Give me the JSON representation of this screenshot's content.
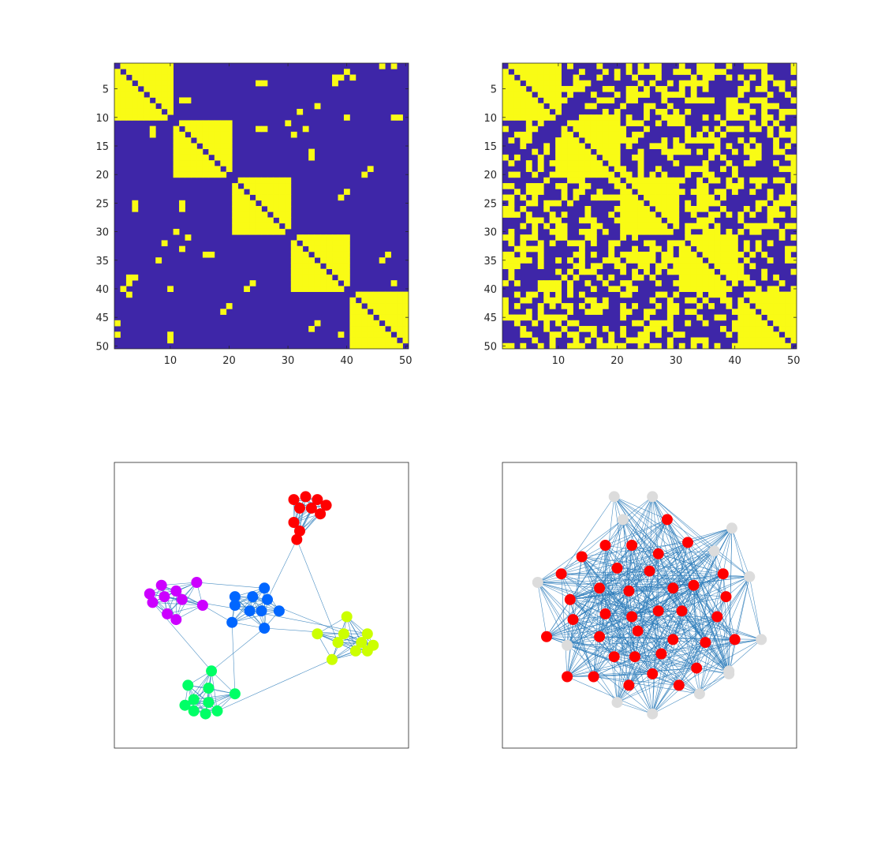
{
  "colors": {
    "off": "#3e26a8",
    "on": "#f9fb15",
    "edge": "#2b7bba",
    "frame": "#262626",
    "inactive_node": "#dcdcdc"
  },
  "chart_data": [
    {
      "type": "heatmap",
      "name": "adjacency-left",
      "rows": 50,
      "cols": 50,
      "xlim": [
        0.5,
        50.5
      ],
      "ylim": [
        0.5,
        50.5
      ],
      "xticks": [
        10,
        20,
        30,
        40,
        50
      ],
      "yticks": [
        5,
        10,
        15,
        20,
        25,
        30,
        35,
        40,
        45,
        50
      ],
      "xtick_labels": [
        "10",
        "20",
        "30",
        "40",
        "50"
      ],
      "ytick_labels": [
        "5",
        "10",
        "15",
        "20",
        "25",
        "30",
        "35",
        "40",
        "45",
        "50"
      ],
      "blocks": [
        [
          1,
          10
        ],
        [
          11,
          20
        ],
        [
          21,
          30
        ],
        [
          31,
          40
        ],
        [
          41,
          50
        ]
      ],
      "diagonal": 0,
      "extra_on_pairs": [
        [
          1,
          48
        ],
        [
          3,
          39
        ],
        [
          3,
          41
        ],
        [
          4,
          26
        ],
        [
          7,
          13
        ],
        [
          8,
          35
        ],
        [
          10,
          48
        ],
        [
          12,
          7
        ],
        [
          12,
          33
        ],
        [
          12,
          26
        ],
        [
          13,
          31
        ],
        [
          17,
          34
        ],
        [
          19,
          44
        ],
        [
          23,
          40
        ],
        [
          25,
          4
        ],
        [
          25,
          12
        ],
        [
          30,
          11
        ],
        [
          32,
          9
        ],
        [
          34,
          16
        ],
        [
          34,
          47
        ],
        [
          38,
          3
        ],
        [
          38,
          4
        ],
        [
          39,
          24
        ],
        [
          39,
          48
        ],
        [
          40,
          2
        ],
        [
          40,
          10
        ],
        [
          43,
          20
        ],
        [
          46,
          1
        ],
        [
          46,
          35
        ],
        [
          49,
          10
        ]
      ],
      "note_symmetric": true
    },
    {
      "type": "heatmap",
      "name": "adjacency-right",
      "rows": 50,
      "cols": 50,
      "xlim": [
        0.5,
        50.5
      ],
      "ylim": [
        0.5,
        50.5
      ],
      "xticks": [
        10,
        20,
        30,
        40,
        50
      ],
      "yticks": [
        5,
        10,
        15,
        20,
        25,
        30,
        35,
        40,
        45,
        50
      ],
      "xtick_labels": [
        "10",
        "20",
        "30",
        "40",
        "50"
      ],
      "ytick_labels": [
        "5",
        "10",
        "15",
        "20",
        "25",
        "30",
        "35",
        "40",
        "45",
        "50"
      ],
      "blocks": [
        [
          1,
          10
        ],
        [
          11,
          20
        ],
        [
          21,
          30
        ],
        [
          31,
          40
        ],
        [
          41,
          50
        ]
      ],
      "diagonal": 0,
      "off_block_density": 0.42
    },
    {
      "type": "scatter",
      "name": "graph-left",
      "xlim": [
        0,
        1
      ],
      "ylim": [
        0,
        1
      ],
      "nodes": [
        {
          "x": 0.61,
          "y": 0.87,
          "c": "#ff0000"
        },
        {
          "x": 0.65,
          "y": 0.88,
          "c": "#ff0000"
        },
        {
          "x": 0.69,
          "y": 0.87,
          "c": "#ff0000"
        },
        {
          "x": 0.72,
          "y": 0.85,
          "c": "#ff0000"
        },
        {
          "x": 0.63,
          "y": 0.84,
          "c": "#ff0000"
        },
        {
          "x": 0.67,
          "y": 0.84,
          "c": "#ff0000"
        },
        {
          "x": 0.7,
          "y": 0.82,
          "c": "#ff0000"
        },
        {
          "x": 0.61,
          "y": 0.79,
          "c": "#ff0000"
        },
        {
          "x": 0.63,
          "y": 0.76,
          "c": "#ff0000"
        },
        {
          "x": 0.62,
          "y": 0.73,
          "c": "#ff0000"
        },
        {
          "x": 0.28,
          "y": 0.58,
          "c": "#cc00ff"
        },
        {
          "x": 0.16,
          "y": 0.57,
          "c": "#cc00ff"
        },
        {
          "x": 0.21,
          "y": 0.55,
          "c": "#cc00ff"
        },
        {
          "x": 0.12,
          "y": 0.54,
          "c": "#cc00ff"
        },
        {
          "x": 0.17,
          "y": 0.53,
          "c": "#cc00ff"
        },
        {
          "x": 0.23,
          "y": 0.52,
          "c": "#cc00ff"
        },
        {
          "x": 0.13,
          "y": 0.51,
          "c": "#cc00ff"
        },
        {
          "x": 0.3,
          "y": 0.5,
          "c": "#cc00ff"
        },
        {
          "x": 0.18,
          "y": 0.47,
          "c": "#cc00ff"
        },
        {
          "x": 0.21,
          "y": 0.45,
          "c": "#cc00ff"
        },
        {
          "x": 0.51,
          "y": 0.56,
          "c": "#0066ff"
        },
        {
          "x": 0.41,
          "y": 0.53,
          "c": "#0066ff"
        },
        {
          "x": 0.47,
          "y": 0.53,
          "c": "#0066ff"
        },
        {
          "x": 0.41,
          "y": 0.5,
          "c": "#0066ff"
        },
        {
          "x": 0.52,
          "y": 0.52,
          "c": "#0066ff"
        },
        {
          "x": 0.46,
          "y": 0.48,
          "c": "#0066ff"
        },
        {
          "x": 0.5,
          "y": 0.48,
          "c": "#0066ff"
        },
        {
          "x": 0.56,
          "y": 0.48,
          "c": "#0066ff"
        },
        {
          "x": 0.4,
          "y": 0.44,
          "c": "#0066ff"
        },
        {
          "x": 0.51,
          "y": 0.42,
          "c": "#0066ff"
        },
        {
          "x": 0.79,
          "y": 0.46,
          "c": "#ccff00"
        },
        {
          "x": 0.78,
          "y": 0.4,
          "c": "#ccff00"
        },
        {
          "x": 0.69,
          "y": 0.4,
          "c": "#ccff00"
        },
        {
          "x": 0.86,
          "y": 0.4,
          "c": "#ccff00"
        },
        {
          "x": 0.76,
          "y": 0.37,
          "c": "#ccff00"
        },
        {
          "x": 0.84,
          "y": 0.37,
          "c": "#ccff00"
        },
        {
          "x": 0.88,
          "y": 0.36,
          "c": "#ccff00"
        },
        {
          "x": 0.82,
          "y": 0.34,
          "c": "#ccff00"
        },
        {
          "x": 0.86,
          "y": 0.34,
          "c": "#ccff00"
        },
        {
          "x": 0.74,
          "y": 0.31,
          "c": "#ccff00"
        },
        {
          "x": 0.33,
          "y": 0.27,
          "c": "#00ff66"
        },
        {
          "x": 0.25,
          "y": 0.22,
          "c": "#00ff66"
        },
        {
          "x": 0.32,
          "y": 0.21,
          "c": "#00ff66"
        },
        {
          "x": 0.41,
          "y": 0.19,
          "c": "#00ff66"
        },
        {
          "x": 0.27,
          "y": 0.17,
          "c": "#00ff66"
        },
        {
          "x": 0.32,
          "y": 0.16,
          "c": "#00ff66"
        },
        {
          "x": 0.24,
          "y": 0.15,
          "c": "#00ff66"
        },
        {
          "x": 0.27,
          "y": 0.13,
          "c": "#00ff66"
        },
        {
          "x": 0.31,
          "y": 0.12,
          "c": "#00ff66"
        },
        {
          "x": 0.35,
          "y": 0.13,
          "c": "#00ff66"
        }
      ],
      "groups": [
        [
          0,
          10
        ],
        [
          10,
          20
        ],
        [
          20,
          30
        ],
        [
          30,
          40
        ],
        [
          40,
          50
        ]
      ],
      "inter_edges": [
        [
          9,
          24
        ],
        [
          9,
          34
        ],
        [
          10,
          20
        ],
        [
          17,
          28
        ],
        [
          16,
          40
        ],
        [
          28,
          43
        ],
        [
          29,
          31
        ],
        [
          29,
          40
        ],
        [
          25,
          33
        ],
        [
          49,
          39
        ],
        [
          22,
          36
        ],
        [
          14,
          25
        ]
      ]
    },
    {
      "type": "scatter",
      "name": "graph-right",
      "xlim": [
        0,
        1
      ],
      "ylim": [
        0,
        1
      ],
      "nodes": [
        {
          "x": 0.38,
          "y": 0.88,
          "c": "#dcdcdc"
        },
        {
          "x": 0.51,
          "y": 0.88,
          "c": "#dcdcdc"
        },
        {
          "x": 0.41,
          "y": 0.8,
          "c": "#dcdcdc"
        },
        {
          "x": 0.78,
          "y": 0.77,
          "c": "#dcdcdc"
        },
        {
          "x": 0.72,
          "y": 0.69,
          "c": "#dcdcdc"
        },
        {
          "x": 0.12,
          "y": 0.58,
          "c": "#dcdcdc"
        },
        {
          "x": 0.84,
          "y": 0.6,
          "c": "#dcdcdc"
        },
        {
          "x": 0.22,
          "y": 0.36,
          "c": "#dcdcdc"
        },
        {
          "x": 0.88,
          "y": 0.38,
          "c": "#dcdcdc"
        },
        {
          "x": 0.77,
          "y": 0.27,
          "c": "#dcdcdc"
        },
        {
          "x": 0.67,
          "y": 0.19,
          "c": "#dcdcdc"
        },
        {
          "x": 0.39,
          "y": 0.16,
          "c": "#dcdcdc"
        },
        {
          "x": 0.51,
          "y": 0.12,
          "c": "#dcdcdc"
        },
        {
          "x": 0.77,
          "y": 0.26,
          "c": "#dcdcdc"
        },
        {
          "x": 0.56,
          "y": 0.8,
          "c": "#ff0000"
        },
        {
          "x": 0.63,
          "y": 0.72,
          "c": "#ff0000"
        },
        {
          "x": 0.35,
          "y": 0.71,
          "c": "#ff0000"
        },
        {
          "x": 0.44,
          "y": 0.71,
          "c": "#ff0000"
        },
        {
          "x": 0.27,
          "y": 0.67,
          "c": "#ff0000"
        },
        {
          "x": 0.53,
          "y": 0.68,
          "c": "#ff0000"
        },
        {
          "x": 0.2,
          "y": 0.61,
          "c": "#ff0000"
        },
        {
          "x": 0.39,
          "y": 0.63,
          "c": "#ff0000"
        },
        {
          "x": 0.5,
          "y": 0.62,
          "c": "#ff0000"
        },
        {
          "x": 0.75,
          "y": 0.61,
          "c": "#ff0000"
        },
        {
          "x": 0.33,
          "y": 0.56,
          "c": "#ff0000"
        },
        {
          "x": 0.43,
          "y": 0.55,
          "c": "#ff0000"
        },
        {
          "x": 0.58,
          "y": 0.56,
          "c": "#ff0000"
        },
        {
          "x": 0.65,
          "y": 0.57,
          "c": "#ff0000"
        },
        {
          "x": 0.23,
          "y": 0.52,
          "c": "#ff0000"
        },
        {
          "x": 0.76,
          "y": 0.53,
          "c": "#ff0000"
        },
        {
          "x": 0.35,
          "y": 0.47,
          "c": "#ff0000"
        },
        {
          "x": 0.53,
          "y": 0.48,
          "c": "#ff0000"
        },
        {
          "x": 0.61,
          "y": 0.48,
          "c": "#ff0000"
        },
        {
          "x": 0.24,
          "y": 0.45,
          "c": "#ff0000"
        },
        {
          "x": 0.44,
          "y": 0.46,
          "c": "#ff0000"
        },
        {
          "x": 0.73,
          "y": 0.46,
          "c": "#ff0000"
        },
        {
          "x": 0.46,
          "y": 0.41,
          "c": "#ff0000"
        },
        {
          "x": 0.15,
          "y": 0.39,
          "c": "#ff0000"
        },
        {
          "x": 0.33,
          "y": 0.39,
          "c": "#ff0000"
        },
        {
          "x": 0.58,
          "y": 0.38,
          "c": "#ff0000"
        },
        {
          "x": 0.79,
          "y": 0.38,
          "c": "#ff0000"
        },
        {
          "x": 0.69,
          "y": 0.37,
          "c": "#ff0000"
        },
        {
          "x": 0.45,
          "y": 0.32,
          "c": "#ff0000"
        },
        {
          "x": 0.54,
          "y": 0.33,
          "c": "#ff0000"
        },
        {
          "x": 0.38,
          "y": 0.32,
          "c": "#ff0000"
        },
        {
          "x": 0.66,
          "y": 0.28,
          "c": "#ff0000"
        },
        {
          "x": 0.22,
          "y": 0.25,
          "c": "#ff0000"
        },
        {
          "x": 0.31,
          "y": 0.25,
          "c": "#ff0000"
        },
        {
          "x": 0.51,
          "y": 0.26,
          "c": "#ff0000"
        },
        {
          "x": 0.43,
          "y": 0.22,
          "c": "#ff0000"
        },
        {
          "x": 0.6,
          "y": 0.22,
          "c": "#ff0000"
        }
      ],
      "edge_probability": 0.32
    }
  ]
}
